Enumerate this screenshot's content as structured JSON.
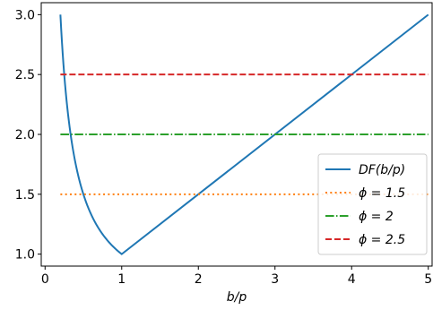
{
  "chart_data": {
    "type": "line",
    "title": "",
    "xlabel": "b/p",
    "ylabel": "",
    "xlim": [
      -0.05,
      5.05
    ],
    "ylim": [
      0.9,
      3.1
    ],
    "xticks": [
      0,
      1,
      2,
      3,
      4,
      5
    ],
    "yticks": [
      1.0,
      1.5,
      2.0,
      2.5,
      3.0
    ],
    "xtick_labels": [
      "0",
      "1",
      "2",
      "3",
      "4",
      "5"
    ],
    "ytick_labels": [
      "1.0",
      "1.5",
      "2.0",
      "2.5",
      "3.0"
    ],
    "grid": false,
    "legend_position": "lower right",
    "series": [
      {
        "name": "DF(b/p)",
        "color": "#1f77b4",
        "style": "solid",
        "x": [
          0.2,
          0.25,
          0.3,
          0.35,
          0.4,
          0.45,
          0.5,
          0.6,
          0.7,
          0.8,
          0.9,
          1.0,
          2.0,
          3.0,
          4.0,
          5.0
        ],
        "values": [
          3.0,
          2.5,
          2.167,
          1.929,
          1.75,
          1.611,
          1.5,
          1.333,
          1.214,
          1.125,
          1.056,
          1.0,
          1.5,
          2.0,
          2.5,
          3.0
        ]
      },
      {
        "name": "ϕ = 1.5",
        "color": "#ff7f0e",
        "style": "dotted",
        "x": [
          0.2,
          5.0
        ],
        "values": [
          1.5,
          1.5
        ]
      },
      {
        "name": "ϕ = 2",
        "color": "#2ca02c",
        "style": "dashdot",
        "x": [
          0.2,
          5.0
        ],
        "values": [
          2.0,
          2.0
        ]
      },
      {
        "name": "ϕ = 2.5",
        "color": "#d62728",
        "style": "dashed",
        "x": [
          0.2,
          5.0
        ],
        "values": [
          2.5,
          2.5
        ]
      }
    ]
  }
}
